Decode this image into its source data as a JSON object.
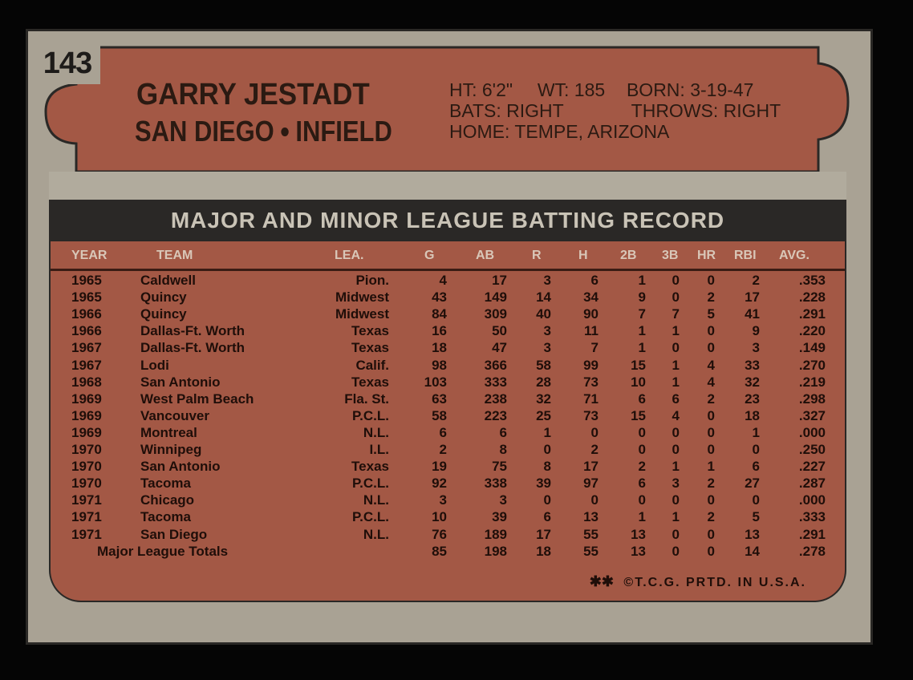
{
  "card": {
    "number": "143",
    "name": "GARRY JESTADT",
    "team": "SAN DIEGO",
    "position": "INFIELD",
    "bio": {
      "ht": "HT: 6'2\"",
      "wt": "WT: 185",
      "born": "BORN: 3-19-47",
      "bats": "BATS: RIGHT",
      "throws": "THROWS: RIGHT",
      "home": "HOME: TEMPE, ARIZONA"
    },
    "record_title": "MAJOR AND MINOR LEAGUE BATTING RECORD",
    "footer": "©T.C.G. PRTD. IN U.S.A.",
    "colors": {
      "panel": "#a35845",
      "band": "#2a2826",
      "card": "#a9a294"
    }
  },
  "columns": [
    "YEAR",
    "TEAM",
    "LEA.",
    "G",
    "AB",
    "R",
    "H",
    "2B",
    "3B",
    "HR",
    "RBI",
    "AVG."
  ],
  "rows": [
    [
      "1965",
      "Caldwell",
      "Pion.",
      "4",
      "17",
      "3",
      "6",
      "1",
      "0",
      "0",
      "2",
      ".353"
    ],
    [
      "1965",
      "Quincy",
      "Midwest",
      "43",
      "149",
      "14",
      "34",
      "9",
      "0",
      "2",
      "17",
      ".228"
    ],
    [
      "1966",
      "Quincy",
      "Midwest",
      "84",
      "309",
      "40",
      "90",
      "7",
      "7",
      "5",
      "41",
      ".291"
    ],
    [
      "1966",
      "Dallas-Ft. Worth",
      "Texas",
      "16",
      "50",
      "3",
      "11",
      "1",
      "1",
      "0",
      "9",
      ".220"
    ],
    [
      "1967",
      "Dallas-Ft. Worth",
      "Texas",
      "18",
      "47",
      "3",
      "7",
      "1",
      "0",
      "0",
      "3",
      ".149"
    ],
    [
      "1967",
      "Lodi",
      "Calif.",
      "98",
      "366",
      "58",
      "99",
      "15",
      "1",
      "4",
      "33",
      ".270"
    ],
    [
      "1968",
      "San Antonio",
      "Texas",
      "103",
      "333",
      "28",
      "73",
      "10",
      "1",
      "4",
      "32",
      ".219"
    ],
    [
      "1969",
      "West Palm Beach",
      "Fla. St.",
      "63",
      "238",
      "32",
      "71",
      "6",
      "6",
      "2",
      "23",
      ".298"
    ],
    [
      "1969",
      "Vancouver",
      "P.C.L.",
      "58",
      "223",
      "25",
      "73",
      "15",
      "4",
      "0",
      "18",
      ".327"
    ],
    [
      "1969",
      "Montreal",
      "N.L.",
      "6",
      "6",
      "1",
      "0",
      "0",
      "0",
      "0",
      "1",
      ".000"
    ],
    [
      "1970",
      "Winnipeg",
      "I.L.",
      "2",
      "8",
      "0",
      "2",
      "0",
      "0",
      "0",
      "0",
      ".250"
    ],
    [
      "1970",
      "San Antonio",
      "Texas",
      "19",
      "75",
      "8",
      "17",
      "2",
      "1",
      "1",
      "6",
      ".227"
    ],
    [
      "1970",
      "Tacoma",
      "P.C.L.",
      "92",
      "338",
      "39",
      "97",
      "6",
      "3",
      "2",
      "27",
      ".287"
    ],
    [
      "1971",
      "Chicago",
      "N.L.",
      "3",
      "3",
      "0",
      "0",
      "0",
      "0",
      "0",
      "0",
      ".000"
    ],
    [
      "1971",
      "Tacoma",
      "P.C.L.",
      "10",
      "39",
      "6",
      "13",
      "1",
      "1",
      "2",
      "5",
      ".333"
    ],
    [
      "1971",
      "San Diego",
      "N.L.",
      "76",
      "189",
      "17",
      "55",
      "13",
      "0",
      "0",
      "13",
      ".291"
    ]
  ],
  "totals": {
    "label": "Major League Totals",
    "values": [
      "85",
      "198",
      "18",
      "55",
      "13",
      "0",
      "0",
      "14",
      ".278"
    ]
  }
}
